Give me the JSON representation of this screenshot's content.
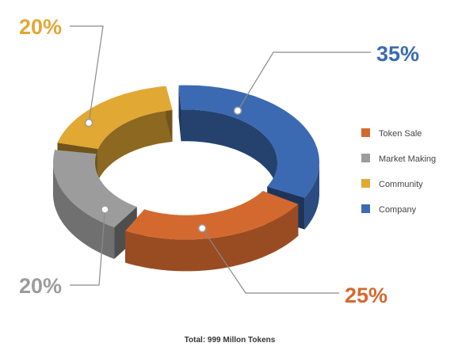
{
  "chart_data": {
    "type": "pie",
    "style": "3d-donut",
    "categories": [
      "Token Sale",
      "Market Making",
      "Community",
      "Company"
    ],
    "values": [
      25,
      20,
      20,
      35
    ],
    "value_labels": [
      "25%",
      "20%",
      "20%",
      "35%"
    ],
    "colors": [
      "#d4692f",
      "#9c9c9c",
      "#e2a834",
      "#3b6ab3"
    ],
    "legend": {
      "placement": "right",
      "entries": [
        "Token Sale",
        "Market Making",
        "Community",
        "Company"
      ]
    },
    "footer": "Total: 999 Millon Tokens"
  }
}
